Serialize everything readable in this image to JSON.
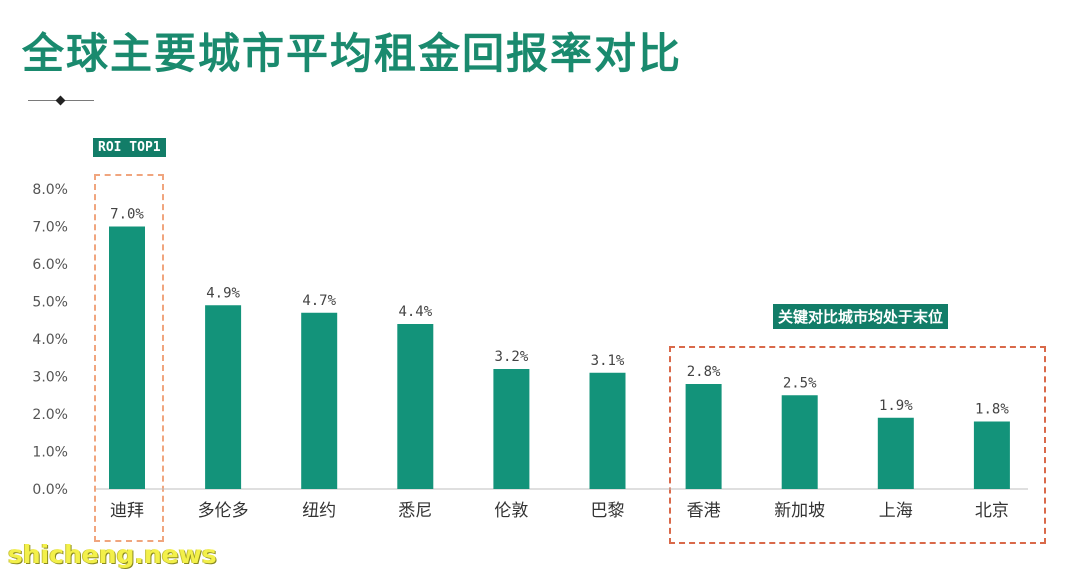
{
  "title": "全球主要城市平均租金回报率对比",
  "badges": {
    "roi_top": "ROI TOP1",
    "note": "关键对比城市均处于末位"
  },
  "watermark": "shicheng.news",
  "colors": {
    "bar": "#13937a",
    "title": "#1a8a6e",
    "badge": "#127d68"
  },
  "chart_data": {
    "type": "bar",
    "categories": [
      "迪拜",
      "多伦多",
      "纽约",
      "悉尼",
      "伦敦",
      "巴黎",
      "香港",
      "新加坡",
      "上海",
      "北京"
    ],
    "values": [
      7.0,
      4.9,
      4.7,
      4.4,
      3.2,
      3.1,
      2.8,
      2.5,
      1.9,
      1.8
    ],
    "value_labels": [
      "7.0%",
      "4.9%",
      "4.7%",
      "4.4%",
      "3.2%",
      "3.1%",
      "2.8%",
      "2.5%",
      "1.9%",
      "1.8%"
    ],
    "y_ticks": [
      "0.0%",
      "1.0%",
      "2.0%",
      "3.0%",
      "4.0%",
      "5.0%",
      "6.0%",
      "7.0%",
      "8.0%"
    ],
    "ylim": [
      0,
      8
    ],
    "grid": false
  }
}
